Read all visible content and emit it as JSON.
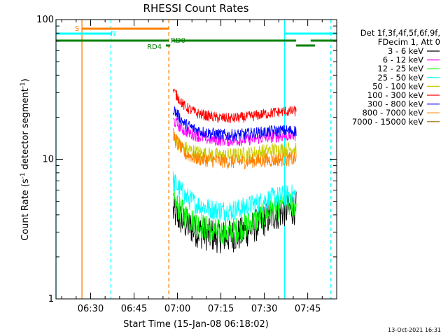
{
  "chart_data": {
    "type": "line",
    "title": "RHESSI Count Rates",
    "xlabel": "Start Time (15-Jan-08 06:18:02)",
    "ylabel_main": "Count Rate (s",
    "ylabel_sup1": "-1",
    "ylabel_mid": " detector segment",
    "ylabel_sup2": "-1",
    "ylabel_end": ")",
    "y_scale": "log",
    "ylim": [
      1,
      100
    ],
    "xlim": [
      "06:18:02",
      "07:55:00"
    ],
    "x_ticks": [
      "06:30",
      "06:45",
      "07:00",
      "07:15",
      "07:30",
      "07:45"
    ],
    "y_ticks": [
      "1",
      "10",
      "100"
    ],
    "grid": false,
    "legend_header": [
      "Det 1f,3f,4f,5f,6f,9f,",
      "FDecim 1, Att 0"
    ],
    "legend_position": "right",
    "data_start": "06:58:30",
    "data_end": "07:41:00",
    "series": [
      {
        "name": "3 - 6 keV",
        "color": "#000000",
        "values": [
          4.2,
          3.5,
          3.1,
          2.9,
          2.8,
          2.8,
          2.9,
          3.2,
          3.6,
          4.0,
          4.3,
          4.5
        ]
      },
      {
        "name": "6 - 12 keV",
        "color": "#ff00ff",
        "values": [
          19.0,
          16.0,
          14.8,
          14.0,
          13.7,
          13.6,
          13.7,
          13.9,
          14.2,
          14.5,
          14.7,
          14.8
        ]
      },
      {
        "name": "12 - 25 keV",
        "color": "#00ff00",
        "values": [
          5.0,
          4.0,
          3.5,
          3.2,
          3.0,
          3.0,
          3.2,
          3.5,
          3.9,
          4.3,
          4.6,
          4.8
        ]
      },
      {
        "name": "25 - 50 keV",
        "color": "#00ffff",
        "values": [
          7.0,
          5.5,
          4.8,
          4.5,
          4.3,
          4.3,
          4.4,
          4.7,
          5.0,
          5.3,
          5.5,
          5.6
        ]
      },
      {
        "name": "50 - 100 keV",
        "color": "#cccc00",
        "values": [
          14.0,
          12.0,
          11.2,
          10.8,
          10.6,
          10.6,
          10.7,
          11.0,
          11.3,
          11.6,
          11.8,
          12.0
        ]
      },
      {
        "name": "100 - 300 keV",
        "color": "#ff0000",
        "values": [
          31.0,
          24.0,
          21.5,
          20.5,
          19.8,
          19.6,
          19.8,
          20.3,
          21.0,
          21.6,
          22.0,
          22.0
        ]
      },
      {
        "name": "300 - 800 keV",
        "color": "#0000ff",
        "values": [
          23.0,
          18.0,
          16.3,
          15.5,
          15.1,
          14.9,
          15.0,
          15.3,
          15.6,
          15.9,
          16.0,
          16.0
        ]
      },
      {
        "name": "800 - 7000 keV",
        "color": "#ff8000",
        "values": [
          15.0,
          11.0,
          10.2,
          9.9,
          9.7,
          9.6,
          9.6,
          9.7,
          9.8,
          9.9,
          10.0,
          10.0
        ]
      },
      {
        "name": "7000 - 15000 keV",
        "color": "#996600",
        "values": []
      }
    ],
    "flags": {
      "saa_label": "S",
      "night_label": "N",
      "rd4_label": "RD4",
      "rd0_label": "RD0"
    },
    "vertical_markers": [
      {
        "time": "06:18:02",
        "color": "#00ffff",
        "style": "solid"
      },
      {
        "time": "06:27:00",
        "color": "#ff8000",
        "style": "solid"
      },
      {
        "time": "06:37:00",
        "color": "#00ffff",
        "style": "dashed"
      },
      {
        "time": "06:57:00",
        "color": "#ff8000",
        "style": "dashed"
      },
      {
        "time": "07:37:00",
        "color": "#00ffff",
        "style": "solid"
      },
      {
        "time": "07:53:00",
        "color": "#00ffff",
        "style": "dashed"
      }
    ]
  },
  "footer_stamp": "13-Oct-2021 16:31"
}
